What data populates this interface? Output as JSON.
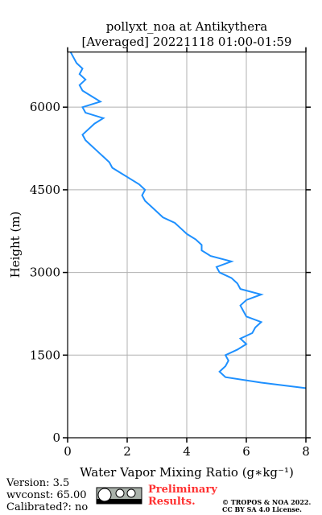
{
  "chart_data": {
    "type": "line",
    "title": [
      "pollyxt_noa at Antikythera",
      "[Averaged] 20221118 01:00-01:59"
    ],
    "x_label": "Water Vapor Mixing Ratio (g∗kg⁻¹)",
    "y_label": "Height (m)",
    "heights": [
      900,
      1000,
      1100,
      1200,
      1300,
      1400,
      1500,
      1600,
      1700,
      1800,
      1900,
      2000,
      2100,
      2200,
      2300,
      2400,
      2500,
      2600,
      2700,
      2800,
      2900,
      3000,
      3100,
      3200,
      3300,
      3400,
      3500,
      3600,
      3700,
      3800,
      3900,
      4000,
      4100,
      4200,
      4300,
      4400,
      4500,
      4600,
      4700,
      4800,
      4900,
      5000,
      5100,
      5200,
      5300,
      5400,
      5500,
      5600,
      5700,
      5800,
      5900,
      6000,
      6100,
      6200,
      6300,
      6400,
      6500,
      6600,
      6700,
      6800,
      6900,
      7000
    ],
    "values": [
      8.0,
      6.5,
      5.3,
      5.1,
      5.3,
      5.4,
      5.3,
      5.7,
      6.0,
      5.8,
      6.2,
      6.3,
      6.5,
      6.0,
      5.9,
      5.8,
      6.0,
      6.5,
      5.8,
      5.7,
      5.5,
      5.1,
      5.0,
      5.5,
      4.8,
      4.5,
      4.5,
      4.3,
      4.0,
      3.8,
      3.6,
      3.2,
      3.0,
      2.8,
      2.6,
      2.5,
      2.6,
      2.4,
      2.1,
      1.8,
      1.5,
      1.4,
      1.2,
      1.0,
      0.8,
      0.6,
      0.5,
      0.7,
      0.9,
      1.2,
      0.6,
      0.5,
      1.1,
      0.8,
      0.5,
      0.4,
      0.6,
      0.4,
      0.5,
      0.3,
      0.2,
      0.1
    ],
    "color": "#1e90ff",
    "xlim": [
      0,
      8
    ],
    "xticks": [
      0,
      2,
      4,
      6,
      8
    ],
    "ylim": [
      0,
      7000
    ],
    "yticks": [
      0,
      1500,
      3000,
      4500,
      6000
    ],
    "grid": true,
    "footer": {
      "version": "Version: 3.5",
      "wvconst": "wvconst:  65.00",
      "calibrated": "Calibrated?: no",
      "status": "Preliminary Results.",
      "copyright": "© TROPOS & NOA 2022.",
      "license": "CC BY SA 4.0 License."
    }
  }
}
